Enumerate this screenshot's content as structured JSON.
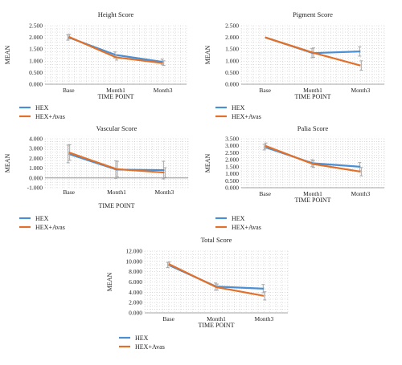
{
  "colors": {
    "hex": "#4a8fd4",
    "hex_avas": "#e0702a",
    "error_bar": "#a8a8a8",
    "axis": "#888888",
    "grid": "#c8c8c8"
  },
  "chart_data": [
    {
      "type": "line",
      "title": "Height Score",
      "xlabel": "TIME POINT",
      "ylabel": "MEAN",
      "categories": [
        "Base",
        "Month1",
        "Month3"
      ],
      "ylim": [
        0,
        2.5
      ],
      "yticks": [
        "0.000",
        "0.500",
        "1.000",
        "1.500",
        "2.000",
        "2.500"
      ],
      "grid": "dotted",
      "legend_position": "bottom-left",
      "series": [
        {
          "name": "HEX",
          "values": [
            2.0,
            1.25,
            0.95
          ],
          "error": [
            0.12,
            0.13,
            0.12
          ]
        },
        {
          "name": "HEX+Avas",
          "values": [
            2.03,
            1.15,
            0.9
          ],
          "error": [
            0.1,
            0.12,
            0.1
          ]
        }
      ]
    },
    {
      "type": "line",
      "title": "Pigment Score",
      "xlabel": "TIME POINT",
      "ylabel": "MEAN",
      "categories": [
        "Base",
        "Month1",
        "Month3"
      ],
      "ylim": [
        0,
        2.5
      ],
      "yticks": [
        "0.000",
        "0.500",
        "1.000",
        "1.500",
        "2.000",
        "2.500"
      ],
      "grid": "dotted",
      "legend_position": "bottom-left",
      "series": [
        {
          "name": "HEX",
          "values": [
            2.0,
            1.33,
            1.4
          ],
          "error": [
            0.0,
            0.2,
            0.2
          ]
        },
        {
          "name": "HEX+Avas",
          "values": [
            2.0,
            1.35,
            0.8
          ],
          "error": [
            0.0,
            0.2,
            0.2
          ]
        }
      ]
    },
    {
      "type": "line",
      "title": "Vascular Score",
      "xlabel": "TIME POINT",
      "ylabel": "MEAN",
      "categories": [
        "Base",
        "Month1",
        "Month3"
      ],
      "ylim": [
        -1,
        4
      ],
      "yticks": [
        "-1.000",
        "0.000",
        "1.000",
        "2.000",
        "3.000",
        "4.000"
      ],
      "grid": "dotted",
      "legend_position": "bottom-left",
      "series": [
        {
          "name": "HEX",
          "values": [
            2.45,
            0.85,
            0.8
          ],
          "error": [
            0.9,
            0.9,
            0.9
          ]
        },
        {
          "name": "HEX+Avas",
          "values": [
            2.6,
            0.9,
            0.55
          ],
          "error": [
            0.8,
            0.8,
            0.5
          ]
        }
      ]
    },
    {
      "type": "line",
      "title": "Palia Score",
      "xlabel": "TIME POINT",
      "ylabel": "MEAN",
      "categories": [
        "Base",
        "Month1",
        "Month3"
      ],
      "ylim": [
        0,
        3.5
      ],
      "yticks": [
        "0.000",
        "0.500",
        "1.000",
        "1.500",
        "2.000",
        "2.500",
        "3.000",
        "3.500"
      ],
      "grid": "dotted",
      "legend_position": "bottom-left",
      "series": [
        {
          "name": "HEX",
          "values": [
            2.9,
            1.75,
            1.5
          ],
          "error": [
            0.2,
            0.25,
            0.3
          ]
        },
        {
          "name": "HEX+Avas",
          "values": [
            3.0,
            1.7,
            1.15
          ],
          "error": [
            0.2,
            0.25,
            0.3
          ]
        }
      ]
    },
    {
      "type": "line",
      "title": "Total Score",
      "xlabel": "TIME POINT",
      "ylabel": "MEAN",
      "categories": [
        "Base",
        "Month1",
        "Month3"
      ],
      "ylim": [
        0,
        12
      ],
      "yticks": [
        "0.000",
        "2.000",
        "4.000",
        "6.000",
        "8.000",
        "10.000",
        "12.000"
      ],
      "grid": "dotted",
      "legend_position": "bottom-left",
      "series": [
        {
          "name": "HEX",
          "values": [
            9.3,
            5.1,
            4.7
          ],
          "error": [
            0.5,
            0.7,
            0.8
          ]
        },
        {
          "name": "HEX+Avas",
          "values": [
            9.5,
            5.0,
            3.3
          ],
          "error": [
            0.4,
            0.6,
            0.8
          ]
        }
      ]
    }
  ]
}
